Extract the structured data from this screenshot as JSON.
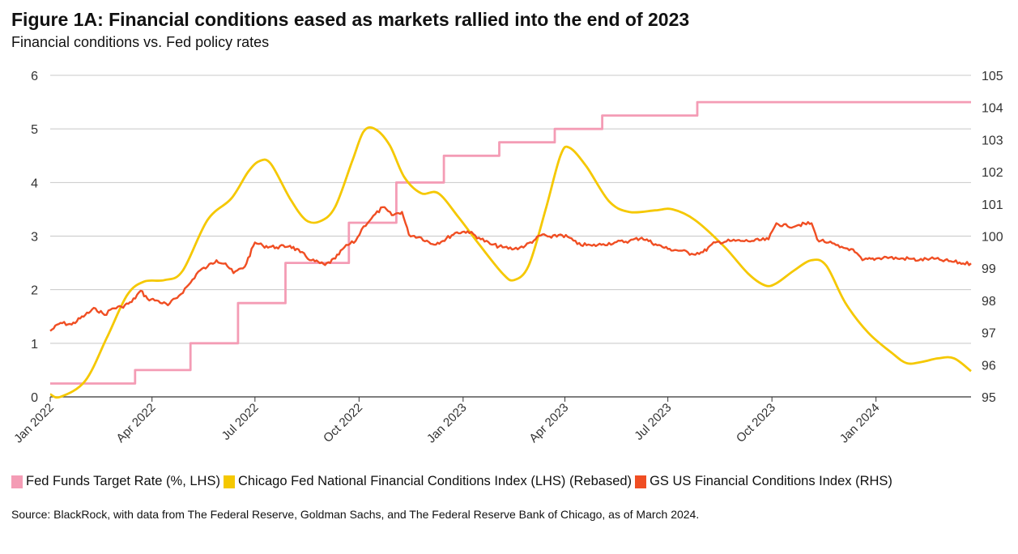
{
  "chart_data": {
    "type": "line",
    "title": "Figure 1A: Financial conditions eased as markets rallied into the end of 2023",
    "subtitle": "Financial conditions vs. Fed policy rates",
    "x_tick_labels": [
      "Jan 2022",
      "Apr 2022",
      "Jul 2022",
      "Oct 2022",
      "Jan 2023",
      "Apr 2023",
      "Jul 2023",
      "Oct 2023",
      "Jan 2024"
    ],
    "x_tick_dates": [
      "2022-01-01",
      "2022-04-01",
      "2022-07-01",
      "2022-10-01",
      "2023-01-01",
      "2023-04-01",
      "2023-07-01",
      "2023-10-01",
      "2024-01-01"
    ],
    "xlim": [
      "2022-01-01",
      "2024-03-25"
    ],
    "y_left": {
      "ylim": [
        0,
        6
      ],
      "ticks": [
        0,
        1,
        2,
        3,
        4,
        5,
        6
      ]
    },
    "y_right": {
      "ylim": [
        95,
        105
      ],
      "ticks": [
        95,
        96,
        97,
        98,
        99,
        100,
        101,
        102,
        103,
        104,
        105
      ]
    },
    "grid": true,
    "legend_position": "bottom",
    "series": [
      {
        "name": "Fed Funds Target Rate (%, LHS)",
        "axis": "left",
        "color": "#f49cb5",
        "style": "step",
        "points": [
          [
            "2022-01-01",
            0.25
          ],
          [
            "2022-03-17",
            0.5
          ],
          [
            "2022-05-05",
            1.0
          ],
          [
            "2022-06-16",
            1.75
          ],
          [
            "2022-07-28",
            2.5
          ],
          [
            "2022-09-22",
            3.25
          ],
          [
            "2022-11-03",
            4.0
          ],
          [
            "2022-12-15",
            4.5
          ],
          [
            "2023-02-02",
            4.75
          ],
          [
            "2023-03-23",
            5.0
          ],
          [
            "2023-05-04",
            5.25
          ],
          [
            "2023-07-27",
            5.5
          ],
          [
            "2024-03-25",
            5.5
          ]
        ]
      },
      {
        "name": "Chicago Fed National Financial Conditions Index (LHS) (Rebased)",
        "axis": "left",
        "color": "#f5c800",
        "style": "smooth",
        "points": [
          [
            "2022-01-01",
            0.05
          ],
          [
            "2022-01-10",
            0.0
          ],
          [
            "2022-02-01",
            0.3
          ],
          [
            "2022-02-20",
            1.1
          ],
          [
            "2022-03-10",
            1.9
          ],
          [
            "2022-03-25",
            2.15
          ],
          [
            "2022-04-12",
            2.18
          ],
          [
            "2022-04-28",
            2.35
          ],
          [
            "2022-05-20",
            3.3
          ],
          [
            "2022-06-10",
            3.7
          ],
          [
            "2022-06-25",
            4.2
          ],
          [
            "2022-07-05",
            4.4
          ],
          [
            "2022-07-15",
            4.35
          ],
          [
            "2022-08-01",
            3.7
          ],
          [
            "2022-08-15",
            3.3
          ],
          [
            "2022-08-28",
            3.28
          ],
          [
            "2022-09-10",
            3.55
          ],
          [
            "2022-09-25",
            4.4
          ],
          [
            "2022-10-05",
            4.95
          ],
          [
            "2022-10-15",
            5.0
          ],
          [
            "2022-10-28",
            4.7
          ],
          [
            "2022-11-10",
            4.1
          ],
          [
            "2022-11-25",
            3.8
          ],
          [
            "2022-12-10",
            3.8
          ],
          [
            "2022-12-28",
            3.35
          ],
          [
            "2023-01-15",
            2.85
          ],
          [
            "2023-02-05",
            2.3
          ],
          [
            "2023-02-15",
            2.18
          ],
          [
            "2023-02-28",
            2.45
          ],
          [
            "2023-03-15",
            3.5
          ],
          [
            "2023-03-28",
            4.5
          ],
          [
            "2023-04-05",
            4.65
          ],
          [
            "2023-04-20",
            4.3
          ],
          [
            "2023-05-10",
            3.65
          ],
          [
            "2023-05-28",
            3.45
          ],
          [
            "2023-06-20",
            3.48
          ],
          [
            "2023-07-05",
            3.5
          ],
          [
            "2023-07-25",
            3.3
          ],
          [
            "2023-08-20",
            2.8
          ],
          [
            "2023-09-10",
            2.3
          ],
          [
            "2023-09-25",
            2.08
          ],
          [
            "2023-10-05",
            2.12
          ],
          [
            "2023-10-20",
            2.35
          ],
          [
            "2023-11-05",
            2.55
          ],
          [
            "2023-11-18",
            2.45
          ],
          [
            "2023-12-05",
            1.75
          ],
          [
            "2023-12-25",
            1.2
          ],
          [
            "2024-01-15",
            0.82
          ],
          [
            "2024-01-28",
            0.63
          ],
          [
            "2024-02-10",
            0.65
          ],
          [
            "2024-02-25",
            0.72
          ],
          [
            "2024-03-10",
            0.72
          ],
          [
            "2024-03-25",
            0.48
          ]
        ]
      },
      {
        "name": "GS US Financial Conditions Index (RHS)",
        "axis": "right",
        "color": "#f04e23",
        "style": "line",
        "points": [
          [
            "2022-01-01",
            97.05
          ],
          [
            "2022-01-10",
            97.3
          ],
          [
            "2022-01-20",
            97.25
          ],
          [
            "2022-02-01",
            97.55
          ],
          [
            "2022-02-10",
            97.75
          ],
          [
            "2022-02-18",
            97.55
          ],
          [
            "2022-02-25",
            97.75
          ],
          [
            "2022-03-05",
            97.8
          ],
          [
            "2022-03-14",
            97.95
          ],
          [
            "2022-03-22",
            98.3
          ],
          [
            "2022-03-28",
            98.05
          ],
          [
            "2022-04-05",
            98.0
          ],
          [
            "2022-04-15",
            97.85
          ],
          [
            "2022-04-25",
            98.15
          ],
          [
            "2022-05-05",
            98.55
          ],
          [
            "2022-05-12",
            98.9
          ],
          [
            "2022-05-20",
            99.05
          ],
          [
            "2022-05-28",
            99.25
          ],
          [
            "2022-06-05",
            99.15
          ],
          [
            "2022-06-12",
            98.85
          ],
          [
            "2022-06-22",
            99.05
          ],
          [
            "2022-07-01",
            99.8
          ],
          [
            "2022-07-08",
            99.7
          ],
          [
            "2022-07-20",
            99.65
          ],
          [
            "2022-08-01",
            99.7
          ],
          [
            "2022-08-10",
            99.5
          ],
          [
            "2022-08-20",
            99.25
          ],
          [
            "2022-09-01",
            99.1
          ],
          [
            "2022-09-10",
            99.3
          ],
          [
            "2022-09-18",
            99.65
          ],
          [
            "2022-09-28",
            99.85
          ],
          [
            "2022-10-05",
            100.3
          ],
          [
            "2022-10-12",
            100.55
          ],
          [
            "2022-10-22",
            100.9
          ],
          [
            "2022-10-30",
            100.65
          ],
          [
            "2022-11-08",
            100.75
          ],
          [
            "2022-11-14",
            100.05
          ],
          [
            "2022-11-25",
            99.95
          ],
          [
            "2022-12-05",
            99.75
          ],
          [
            "2022-12-14",
            99.85
          ],
          [
            "2022-12-25",
            100.1
          ],
          [
            "2023-01-05",
            100.15
          ],
          [
            "2023-01-15",
            99.95
          ],
          [
            "2023-01-25",
            99.75
          ],
          [
            "2023-02-05",
            99.65
          ],
          [
            "2023-02-15",
            99.6
          ],
          [
            "2023-02-25",
            99.7
          ],
          [
            "2023-03-06",
            99.9
          ],
          [
            "2023-03-12",
            100.05
          ],
          [
            "2023-03-20",
            99.95
          ],
          [
            "2023-03-28",
            100.05
          ],
          [
            "2023-04-05",
            99.95
          ],
          [
            "2023-04-12",
            99.75
          ],
          [
            "2023-04-25",
            99.7
          ],
          [
            "2023-05-05",
            99.75
          ],
          [
            "2023-05-15",
            99.8
          ],
          [
            "2023-05-28",
            99.85
          ],
          [
            "2023-06-08",
            99.95
          ],
          [
            "2023-06-20",
            99.75
          ],
          [
            "2023-07-01",
            99.6
          ],
          [
            "2023-07-12",
            99.55
          ],
          [
            "2023-07-22",
            99.45
          ],
          [
            "2023-08-01",
            99.5
          ],
          [
            "2023-08-12",
            99.8
          ],
          [
            "2023-08-25",
            99.85
          ],
          [
            "2023-09-05",
            99.85
          ],
          [
            "2023-09-15",
            99.85
          ],
          [
            "2023-09-28",
            99.9
          ],
          [
            "2023-10-05",
            100.4
          ],
          [
            "2023-10-15",
            100.3
          ],
          [
            "2023-10-25",
            100.35
          ],
          [
            "2023-11-05",
            100.4
          ],
          [
            "2023-11-10",
            99.9
          ],
          [
            "2023-11-20",
            99.8
          ],
          [
            "2023-11-30",
            99.65
          ],
          [
            "2023-12-10",
            99.6
          ],
          [
            "2023-12-20",
            99.25
          ],
          [
            "2024-01-01",
            99.3
          ],
          [
            "2024-01-10",
            99.35
          ],
          [
            "2024-01-20",
            99.3
          ],
          [
            "2024-01-30",
            99.3
          ],
          [
            "2024-02-08",
            99.25
          ],
          [
            "2024-02-18",
            99.3
          ],
          [
            "2024-02-28",
            99.25
          ],
          [
            "2024-03-10",
            99.2
          ],
          [
            "2024-03-18",
            99.15
          ],
          [
            "2024-03-25",
            99.15
          ]
        ]
      }
    ],
    "source": "Source: BlackRock, with data from The Federal Reserve, Goldman Sachs, and The Federal Reserve Bank of Chicago, as of March 2024."
  }
}
